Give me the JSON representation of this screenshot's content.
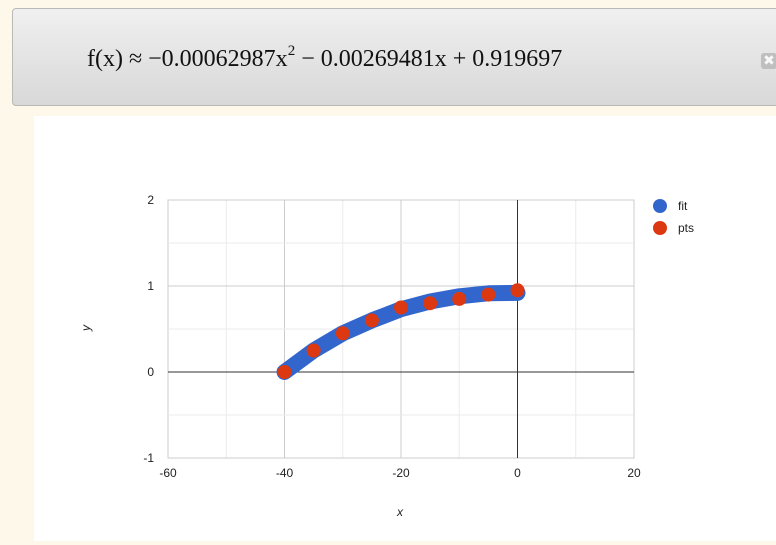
{
  "formula": {
    "lhs": "f(x) ≈ −0.00062987x",
    "exp": "2",
    "rhs": " − 0.00269481x + 0.919697"
  },
  "close_icon": "close-icon",
  "chart_data": {
    "type": "scatter",
    "title": "",
    "xlabel": "x",
    "ylabel": "y",
    "xlim": [
      -60,
      20
    ],
    "ylim": [
      -1,
      2
    ],
    "x_ticks": [
      "-60",
      "-40",
      "-20",
      "0",
      "20"
    ],
    "y_ticks": [
      "-1",
      "0",
      "1",
      "2"
    ],
    "grid": true,
    "legend_position": "top-right",
    "series": [
      {
        "name": "fit",
        "color": "#3366cc",
        "style": "thick-line",
        "x": [
          -40,
          -35,
          -30,
          -25,
          -20,
          -15,
          -10,
          -5,
          0
        ],
        "y": [
          0.0,
          0.25,
          0.45,
          0.6,
          0.73,
          0.82,
          0.88,
          0.915,
          0.92
        ]
      },
      {
        "name": "pts",
        "color": "#dc3912",
        "style": "points",
        "x": [
          -40,
          -35,
          -30,
          -25,
          -20,
          -15,
          -10,
          -5,
          0
        ],
        "y": [
          0.0,
          0.25,
          0.45,
          0.6,
          0.75,
          0.8,
          0.85,
          0.9,
          0.95
        ]
      }
    ]
  }
}
